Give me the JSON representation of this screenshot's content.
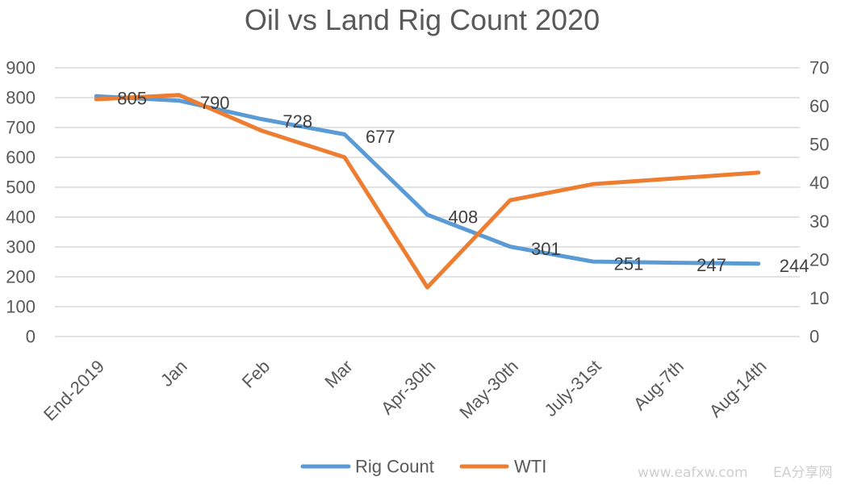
{
  "chart_data": {
    "type": "line",
    "title": "Oil vs Land Rig Count 2020",
    "categories": [
      "End-2019",
      "Jan",
      "Feb",
      "Mar",
      "Apr-30th",
      "May-30th",
      "July-31st",
      "Aug-7th",
      "Aug-14th"
    ],
    "series": [
      {
        "name": "Rig Count",
        "color": "#5B9BD5",
        "secondary_axis": false,
        "data_labels": true,
        "values": [
          805,
          790,
          728,
          677,
          408,
          301,
          251,
          247,
          244
        ]
      },
      {
        "name": "WTI",
        "color": "#ED7D31",
        "secondary_axis": true,
        "data_labels": false,
        "values": [
          61.8,
          62.9,
          53.6,
          46.7,
          12.8,
          35.5,
          39.7,
          41.2,
          42.7
        ]
      }
    ],
    "ylim": [
      0,
      900
    ],
    "y_ticks": [
      0,
      100,
      200,
      300,
      400,
      500,
      600,
      700,
      800,
      900
    ],
    "y2lim": [
      0,
      70
    ],
    "y2_ticks": [
      0,
      10,
      20,
      30,
      40,
      50,
      60,
      70
    ],
    "grid": true,
    "legend": "bottom",
    "colors": {
      "text": "#595959",
      "grid": "#D9D9D9"
    }
  },
  "watermark": {
    "url": "www.eafxw.com",
    "brand": "EA分享网"
  }
}
